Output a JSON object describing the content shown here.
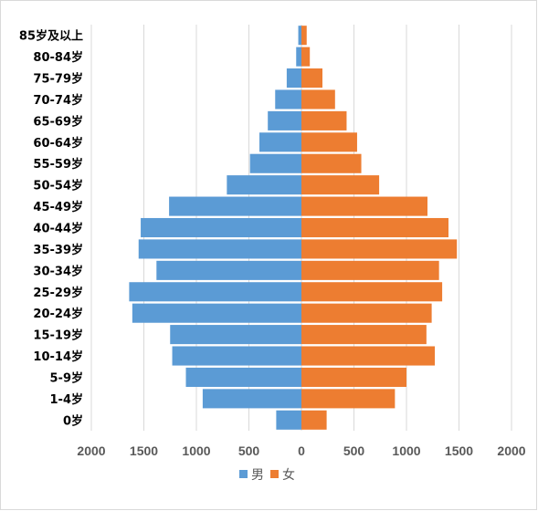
{
  "chart_data": {
    "type": "bar",
    "orientation": "horizontal",
    "subtype": "population-pyramid",
    "categories": [
      "0岁",
      "1-4岁",
      "5-9岁",
      "10-14岁",
      "15-19岁",
      "20-24岁",
      "25-29岁",
      "30-34岁",
      "35-39岁",
      "40-44岁",
      "45-49岁",
      "50-54岁",
      "55-59岁",
      "60-64岁",
      "65-69岁",
      "70-74岁",
      "75-79岁",
      "80-84岁",
      "85岁及以上"
    ],
    "series": [
      {
        "name": "男",
        "color": "#5b9bd5",
        "side": "left",
        "values": [
          240,
          940,
          1100,
          1230,
          1250,
          1610,
          1640,
          1380,
          1550,
          1530,
          1260,
          710,
          490,
          400,
          320,
          250,
          140,
          50,
          30
        ]
      },
      {
        "name": "女",
        "color": "#ed7d31",
        "side": "right",
        "values": [
          240,
          890,
          1000,
          1270,
          1190,
          1240,
          1340,
          1310,
          1480,
          1400,
          1200,
          740,
          570,
          530,
          430,
          320,
          200,
          80,
          50
        ]
      }
    ],
    "xlim": [
      -2000,
      2000
    ],
    "xticks": [
      "2000",
      "1500",
      "1000",
      "500",
      "0",
      "500",
      "1000",
      "1500",
      "2000"
    ],
    "grid": true,
    "legend_position": "bottom-center"
  }
}
